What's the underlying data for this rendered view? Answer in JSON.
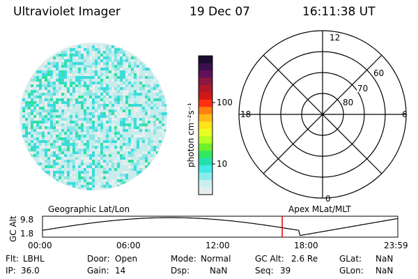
{
  "header": {
    "instrument": "Ultraviolet Imager",
    "date": "19 Dec 07",
    "time": "16:11:38 UT"
  },
  "colorbar": {
    "unit_label": "photon cm⁻²s⁻¹",
    "tick_labels": [
      "100",
      "10"
    ],
    "colors": [
      "#1a0d2e",
      "#3a1050",
      "#62105a",
      "#8a1840",
      "#b01828",
      "#d01818",
      "#ff3010",
      "#ff8010",
      "#ffb818",
      "#ffe41c",
      "#e8ff24",
      "#b8ff22",
      "#70ef2c",
      "#30e860",
      "#24e0b0",
      "#44e8e8",
      "#8cecec",
      "#c8f0f0",
      "#e4eeee"
    ]
  },
  "polar_plot": {
    "mlt_labels": {
      "top": "12",
      "left": "18",
      "right": "6",
      "bottom": "0"
    },
    "lat_labels": [
      "60",
      "70",
      "80"
    ]
  },
  "timeline": {
    "y_axis_label": "GC Alt",
    "y_tick_labels": [
      "9.8",
      "1.8"
    ],
    "left_caption": "Geographic Lat/Lon",
    "right_caption": "Apex MLat/MLT",
    "x_tick_labels": [
      "00:00",
      "06:00",
      "12:00",
      "18:00",
      "23:59"
    ],
    "current_marker_time": "16:11:38",
    "current_marker_color": "#e00000"
  },
  "info": {
    "row1": [
      {
        "label": "Flt:",
        "value": "LBHL"
      },
      {
        "label": "Door:",
        "value": "Open"
      },
      {
        "label": "Mode:",
        "value": "Normal"
      },
      {
        "label": "GC Alt:",
        "value": "2.6 Re"
      },
      {
        "label": "GLat:",
        "value": "NaN"
      }
    ],
    "row2": [
      {
        "label": "IP:",
        "value": "36.0"
      },
      {
        "label": "Gain:",
        "value": "14"
      },
      {
        "label": "Dsp:",
        "value": "NaN"
      },
      {
        "label": "Seq:",
        "value": "39"
      },
      {
        "label": "GLon:",
        "value": "NaN"
      }
    ]
  }
}
